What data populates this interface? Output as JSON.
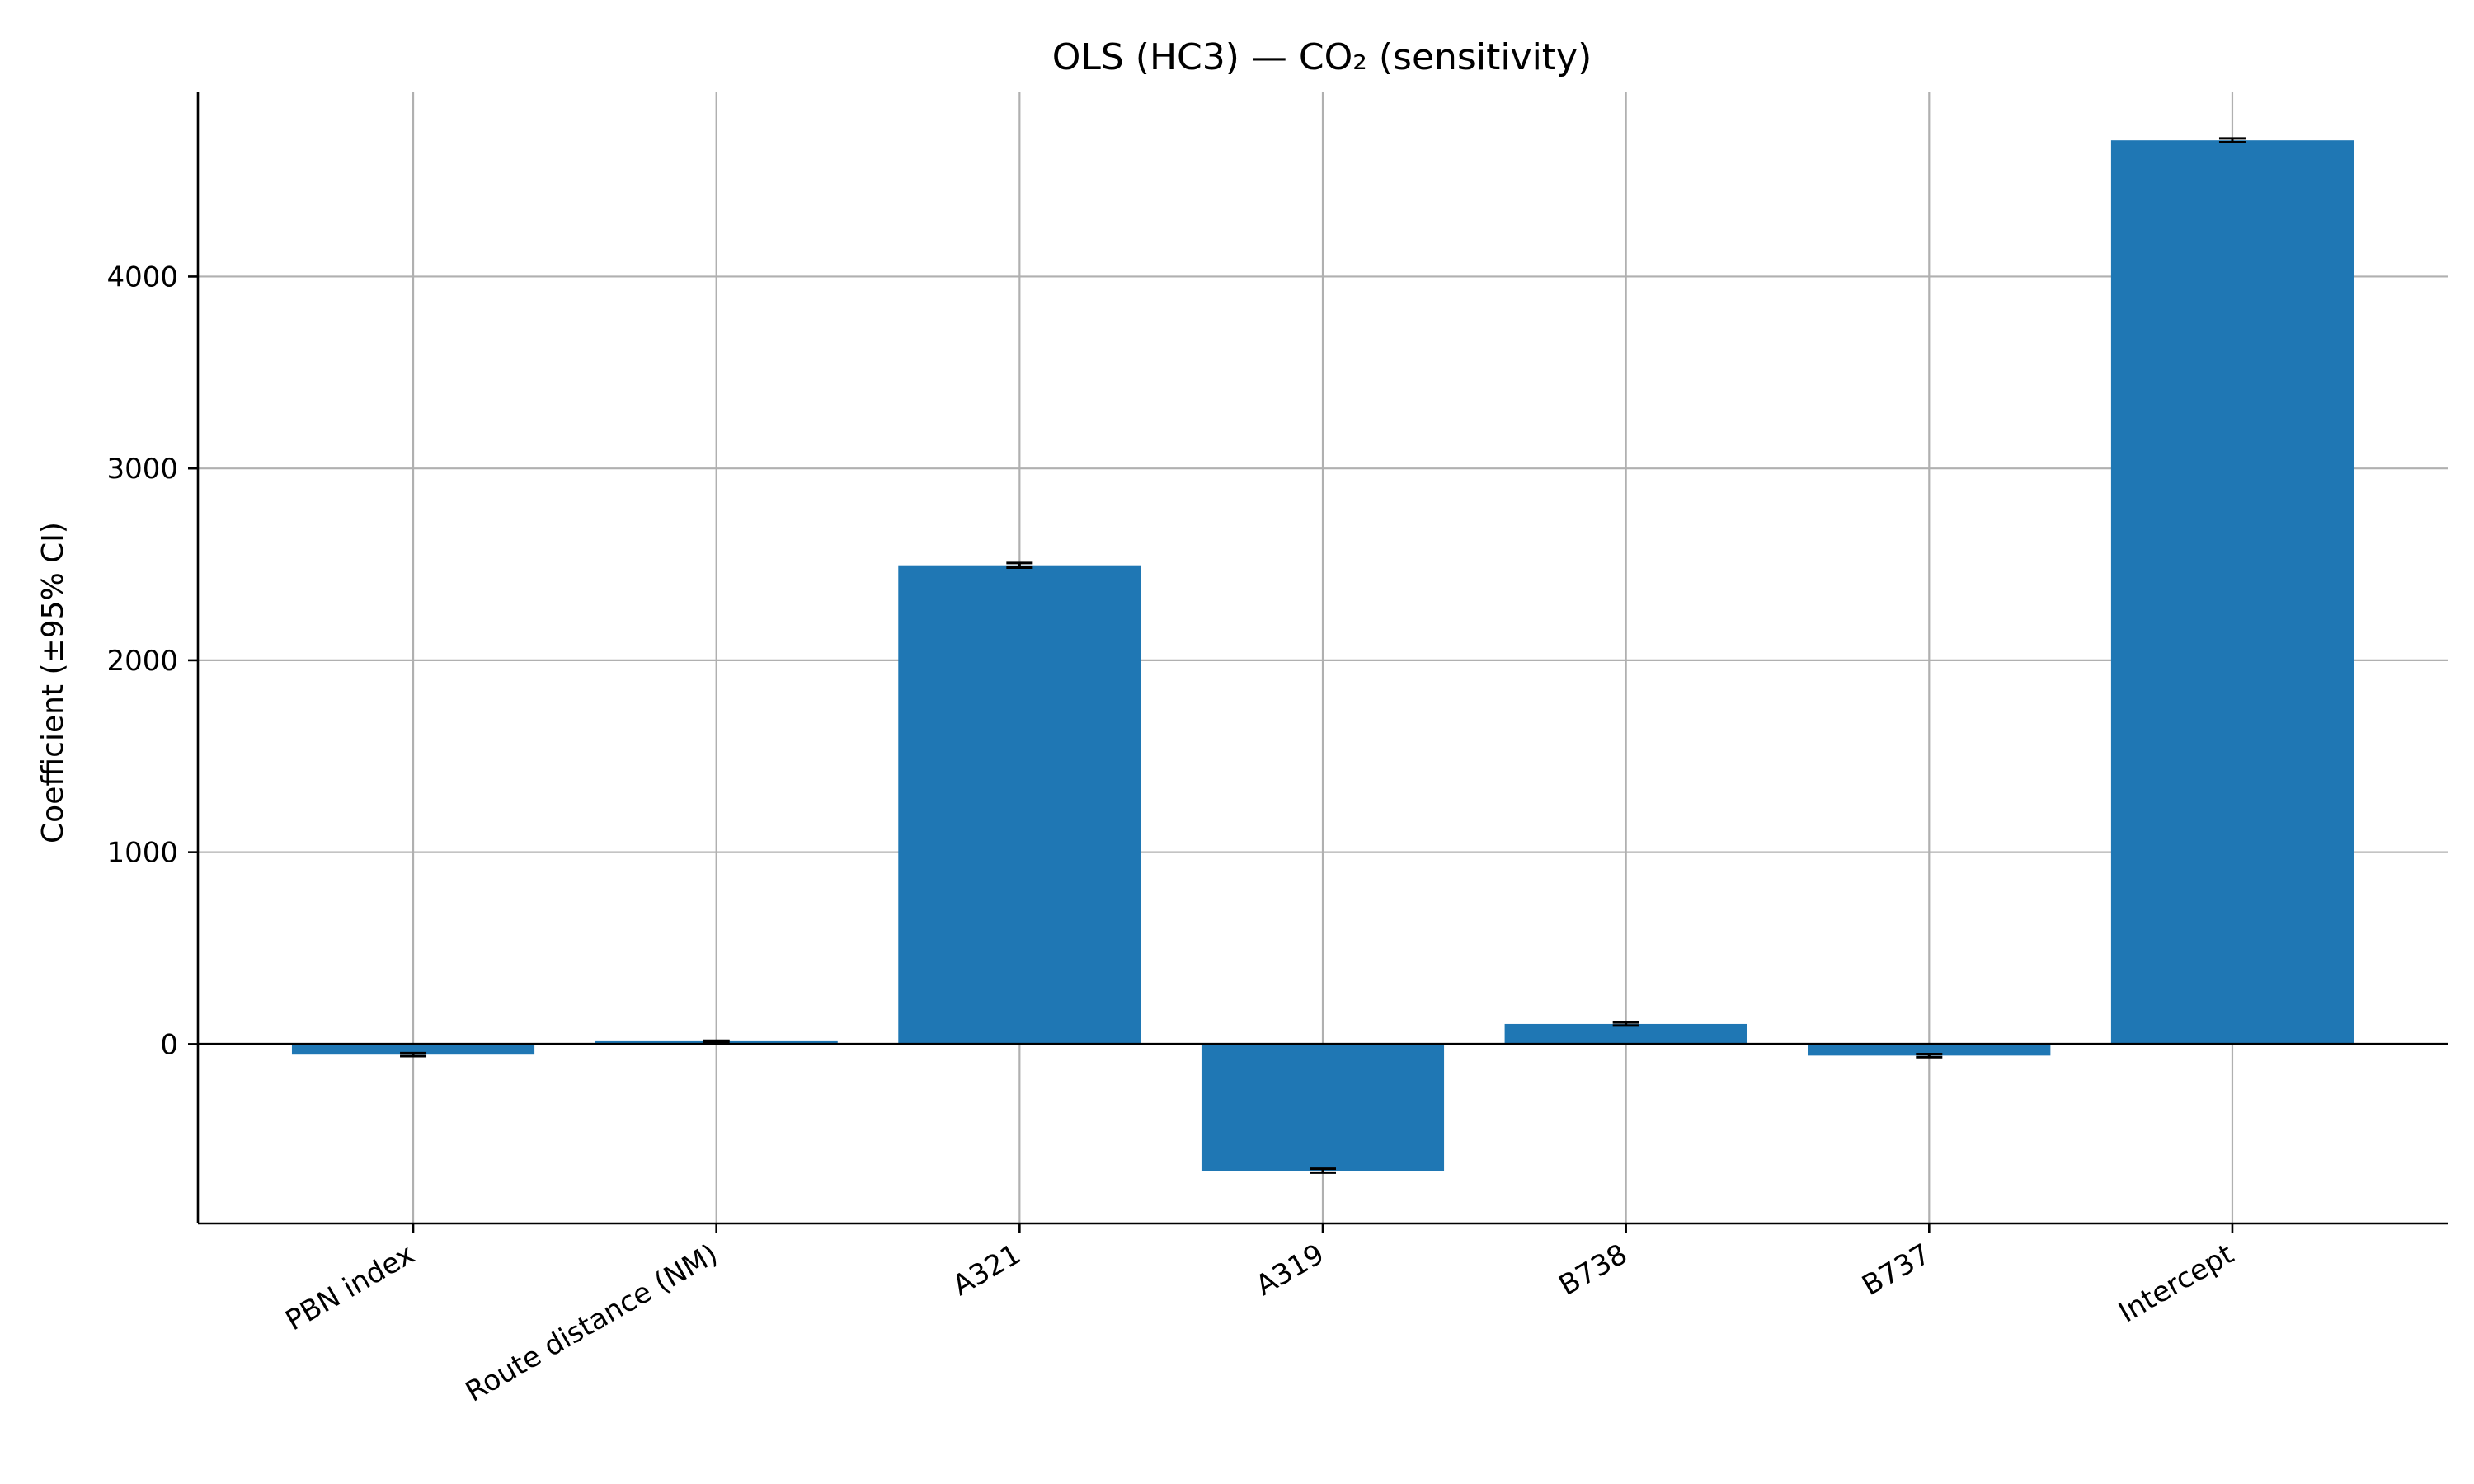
{
  "chart_data": {
    "type": "bar",
    "title": "OLS (HC3) — CO₂ (sensitivity)",
    "xlabel": "",
    "ylabel": "Coefficient (±95% CI)",
    "categories": [
      "PBN index",
      "Route distance (NM)",
      "A321",
      "A319",
      "B738",
      "B737",
      "Intercept"
    ],
    "values": [
      -55,
      15,
      2495,
      -660,
      105,
      -60,
      4710
    ],
    "ci_halfwidth": [
      8,
      3,
      12,
      10,
      8,
      8,
      10
    ],
    "ylim": [
      -935,
      4960
    ],
    "yticks": [
      0,
      1000,
      2000,
      3000,
      4000
    ],
    "grid": true,
    "bar_color": "#1f77b4",
    "reference_line_y": 0
  }
}
